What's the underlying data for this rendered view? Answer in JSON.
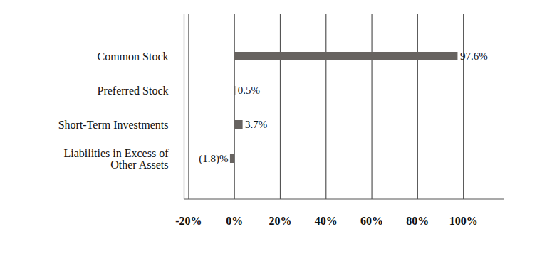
{
  "chart_data": {
    "type": "bar",
    "orientation": "horizontal",
    "categories": [
      "Common Stock",
      "Preferred Stock",
      "Short-Term Investments",
      "Liabilities in Excess of Other Assets"
    ],
    "values": [
      97.6,
      0.5,
      3.7,
      -1.8
    ],
    "value_labels": [
      "97.6%",
      "0.5%",
      "3.7%",
      "(1.8)%"
    ],
    "data_labels": true,
    "color": "#676360",
    "xlim": [
      -22,
      118
    ],
    "xticks": [
      {
        "value": -20,
        "label": "-20%"
      },
      {
        "value": 0,
        "label": "0%"
      },
      {
        "value": 20,
        "label": "20%"
      },
      {
        "value": 40,
        "label": "40%"
      },
      {
        "value": 60,
        "label": "60%"
      },
      {
        "value": 80,
        "label": "80%"
      },
      {
        "value": 100,
        "label": "100%"
      }
    ],
    "grid": true
  }
}
